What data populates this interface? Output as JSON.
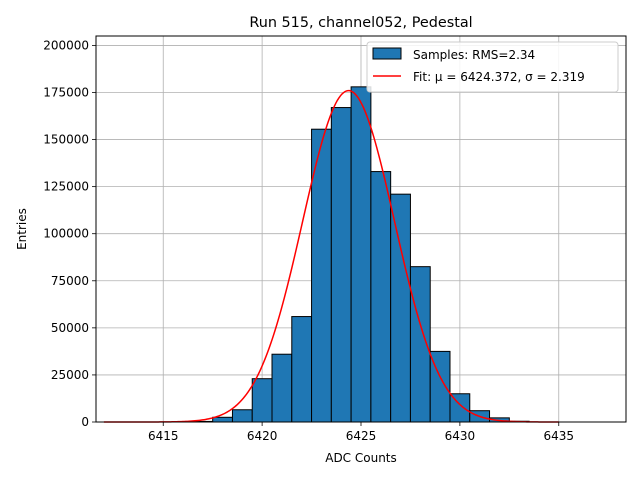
{
  "chart_data": {
    "type": "histogram",
    "title": "Run 515, channel052, Pedestal",
    "xlabel": "ADC Counts",
    "ylabel": "Entries",
    "xlim": [
      6411.6,
      6438.4
    ],
    "ylim": [
      0,
      205000
    ],
    "xticks": [
      6415,
      6420,
      6425,
      6430,
      6435
    ],
    "yticks": [
      0,
      25000,
      50000,
      75000,
      100000,
      125000,
      150000,
      175000,
      200000
    ],
    "grid": true,
    "legend_position": "top-right",
    "bin_width": 1,
    "bins": [
      {
        "x": 6417,
        "count": 300
      },
      {
        "x": 6418,
        "count": 2500
      },
      {
        "x": 6419,
        "count": 6500
      },
      {
        "x": 6420,
        "count": 23000
      },
      {
        "x": 6421,
        "count": 36000
      },
      {
        "x": 6422,
        "count": 56000
      },
      {
        "x": 6423,
        "count": 155500
      },
      {
        "x": 6424,
        "count": 167000
      },
      {
        "x": 6425,
        "count": 178000
      },
      {
        "x": 6426,
        "count": 133000
      },
      {
        "x": 6427,
        "count": 121000
      },
      {
        "x": 6428,
        "count": 82500
      },
      {
        "x": 6429,
        "count": 37500
      },
      {
        "x": 6430,
        "count": 15000
      },
      {
        "x": 6431,
        "count": 6000
      },
      {
        "x": 6432,
        "count": 2200
      },
      {
        "x": 6433,
        "count": 400
      }
    ],
    "fit": {
      "mu": 6424.372,
      "sigma": 2.319,
      "amplitude": 176000,
      "x_range": [
        6412,
        6435
      ]
    },
    "series": [
      {
        "name": "Samples: RMS=2.34",
        "kind": "histogram",
        "color": "#1f77b4"
      },
      {
        "name": "Fit: μ = 6424.372, σ = 2.319",
        "kind": "line",
        "color": "#ff0000"
      }
    ]
  }
}
